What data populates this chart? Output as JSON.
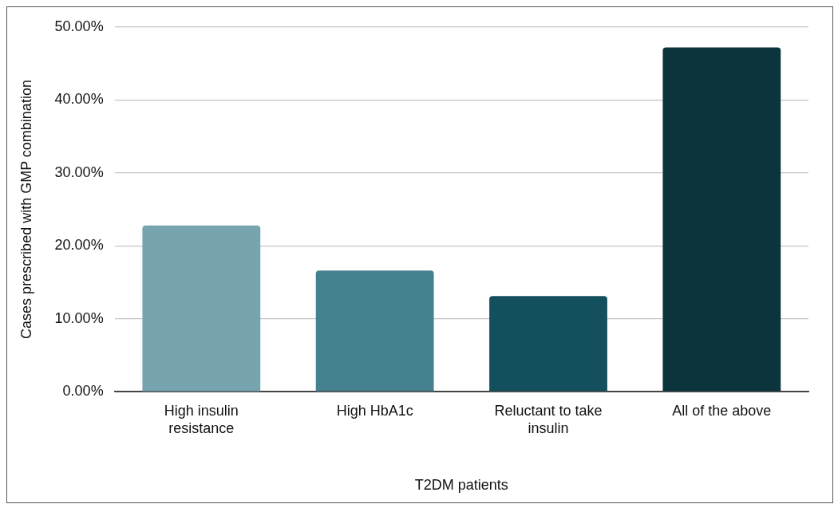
{
  "chart_data": {
    "type": "bar",
    "xlabel": "T2DM patients",
    "ylabel": "Cases prescribed with GMP combination",
    "categories": [
      "High insulin resistance",
      "High HbA1c",
      "Reluctant to take insulin",
      "All of the above"
    ],
    "values": [
      22.8,
      16.6,
      13.1,
      47.2
    ],
    "colors": [
      "#76a5af",
      "#45818e",
      "#134f5c",
      "#0c343d"
    ],
    "ylim": [
      0,
      50
    ],
    "yticks": [
      {
        "value": 0,
        "label": "0.00%"
      },
      {
        "value": 10,
        "label": "10.00%"
      },
      {
        "value": 20,
        "label": "20.00%"
      },
      {
        "value": 30,
        "label": "30.00%"
      },
      {
        "value": 40,
        "label": "40.00%"
      },
      {
        "value": 50,
        "label": "50.00%"
      }
    ],
    "grid": "y",
    "legend": false
  }
}
